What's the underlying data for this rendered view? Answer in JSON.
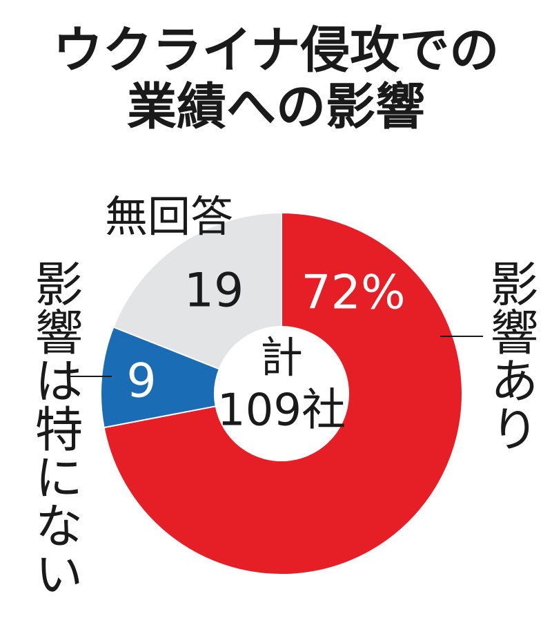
{
  "chart_data": {
    "type": "donut",
    "title": [
      "ウクライナ侵攻での",
      "業績への影響"
    ],
    "categories": [
      "影響あり",
      "影響は特にない",
      "無回答"
    ],
    "values": [
      72,
      9,
      19
    ],
    "value_labels": [
      "72%",
      "9",
      "19"
    ],
    "colors": [
      "#e61f27",
      "#1a6cb5",
      "#e3e4e6"
    ],
    "center_text": [
      "計",
      "109社"
    ]
  }
}
